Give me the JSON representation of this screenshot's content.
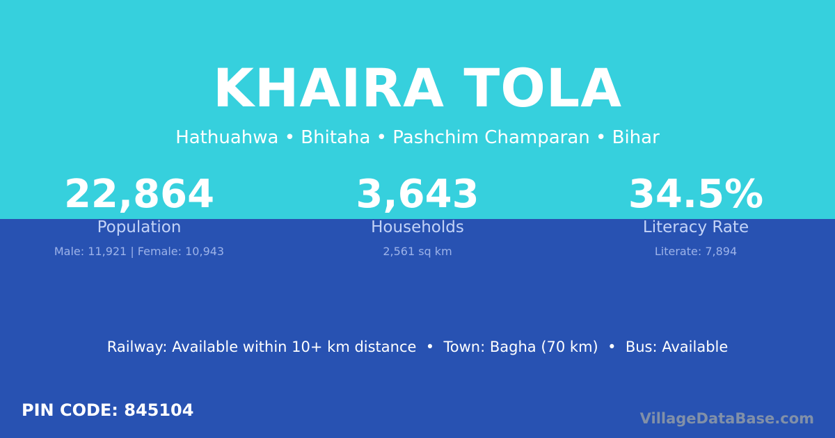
{
  "title": "KHAIRA TOLA",
  "subtitle": "Hathuahwa • Bhitaha • Pashchim Champaran • Bihar",
  "stats": [
    {
      "value": "22,864",
      "label": "Population",
      "detail": "Male: 11,921 | Female: 10,943"
    },
    {
      "value": "3,643",
      "label": "Households",
      "detail": "2,561 sq km"
    },
    {
      "value": "34.5%",
      "label": "Literacy Rate",
      "detail": "Literate: 7,894"
    }
  ],
  "transport": "Railway: Available within 10+ km distance  •  Town: Bagha (70 km)  •  Bus: Available",
  "pin": "PIN CODE: 845104",
  "watermark": "VillageDataBase.com",
  "colors": {
    "top": "#36d0dd",
    "bottom": "#2852b2"
  }
}
